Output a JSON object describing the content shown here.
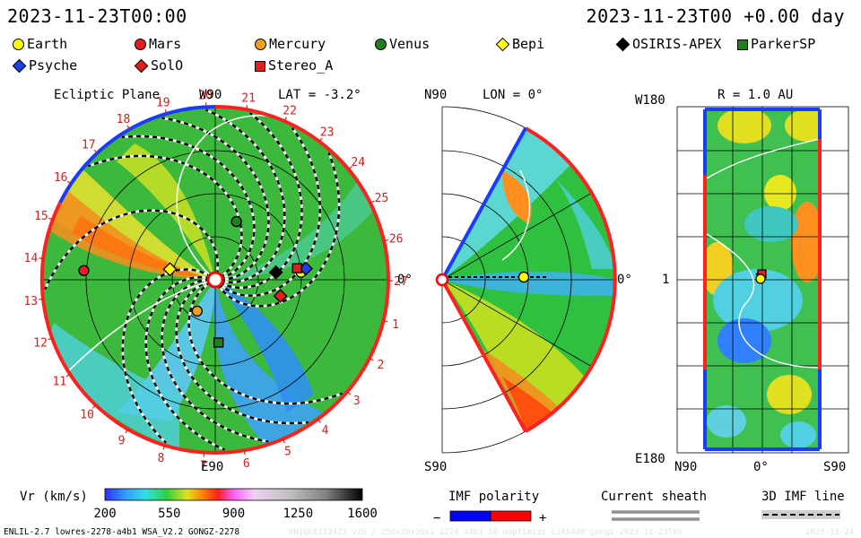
{
  "header": {
    "left_timestamp": "2023-11-23T00:00",
    "right_timestamp": "2023-11-23T00 +0.00 day"
  },
  "legend": {
    "items": [
      {
        "label": "Earth",
        "shape": "circle",
        "color": "#ffff00",
        "icon": "earth-icon"
      },
      {
        "label": "Mars",
        "shape": "circle",
        "color": "#e02020",
        "icon": "mars-icon"
      },
      {
        "label": "Mercury",
        "shape": "circle",
        "color": "#f0a020",
        "icon": "mercury-icon"
      },
      {
        "label": "Venus",
        "shape": "circle",
        "color": "#208020",
        "icon": "venus-icon"
      },
      {
        "label": "Bepi",
        "shape": "diamond",
        "color": "#ffff00",
        "icon": "bepi-icon"
      },
      {
        "label": "OSIRIS-APEX",
        "shape": "diamond",
        "color": "#000000",
        "icon": "osiris-apex-icon"
      },
      {
        "label": "ParkerSP",
        "shape": "square",
        "color": "#208020",
        "icon": "parkersp-icon"
      },
      {
        "label": "Psyche",
        "shape": "diamond",
        "color": "#2040e0",
        "icon": "psyche-icon"
      },
      {
        "label": "SolO",
        "shape": "diamond",
        "color": "#e02020",
        "icon": "solo-icon"
      },
      {
        "label": "Stereo_A",
        "shape": "square",
        "color": "#e02020",
        "icon": "stereo-a-icon"
      }
    ]
  },
  "chart_data": [
    {
      "type": "heatmap",
      "title": "Ecliptic Plane",
      "lat_label": "LAT = -3.2°",
      "top_label": "W90",
      "bottom_label": "E90",
      "right_label": "0°",
      "carrington_ticks": [
        "20",
        "21",
        "22",
        "23",
        "24",
        "25",
        "26",
        "27",
        "1",
        "2",
        "3",
        "4",
        "5",
        "6",
        "7",
        "8",
        "9",
        "10",
        "11",
        "12",
        "13",
        "14",
        "15",
        "16",
        "17",
        "18",
        "19"
      ],
      "bodies": [
        {
          "name": "Earth",
          "r_au": 1.0,
          "lon_deg": 5
        },
        {
          "name": "Mars",
          "r_au": 1.53,
          "lon_deg": 176
        },
        {
          "name": "Mercury",
          "r_au": 0.42,
          "lon_deg": 240
        },
        {
          "name": "Venus",
          "r_au": 0.72,
          "lon_deg": 70
        },
        {
          "name": "Bepi",
          "r_au": 0.54,
          "lon_deg": 167
        },
        {
          "name": "OSIRIS-APEX",
          "r_au": 0.71,
          "lon_deg": 7
        },
        {
          "name": "ParkerSP",
          "r_au": 0.73,
          "lon_deg": 273
        },
        {
          "name": "Psyche",
          "r_au": 1.06,
          "lon_deg": 7
        },
        {
          "name": "SolO",
          "r_au": 0.78,
          "lon_deg": -14
        },
        {
          "name": "Stereo_A",
          "r_au": 0.96,
          "lon_deg": 8
        }
      ]
    },
    {
      "type": "heatmap",
      "title": "LON = 0°",
      "top_label": "N90",
      "bottom_label": "S90",
      "right_label": "0°"
    },
    {
      "type": "heatmap",
      "title": "R = 1.0 AU",
      "top_left_label": "W180",
      "bottom_left_label": "E180",
      "mid_left_label": "1",
      "x_labels": [
        "N90",
        "0°",
        "S90"
      ]
    }
  ],
  "colorbar": {
    "label": "Vr (km/s)",
    "ticks": [
      "200",
      "550",
      "900",
      "1250",
      "1600"
    ],
    "range": [
      200,
      1600
    ]
  },
  "imf_polarity": {
    "label": "IMF polarity",
    "minus": "−",
    "plus": "+",
    "neg_color": "#0000ff",
    "pos_color": "#ff0000"
  },
  "current_sheath": {
    "label": "Current sheath"
  },
  "imf_line": {
    "label": "3D IMF line"
  },
  "footer": {
    "model": "ENLIL-2.7 lowres-2278-a4b1 WSA_V2.2 GONGZ-2278",
    "watermark": "UNIQUE112423 v26 / 256x30x90x1 2278 a4b1 16 noptimizi LiAS4d0 gongz 2023-11-23T00",
    "date": "2023-11-24"
  }
}
